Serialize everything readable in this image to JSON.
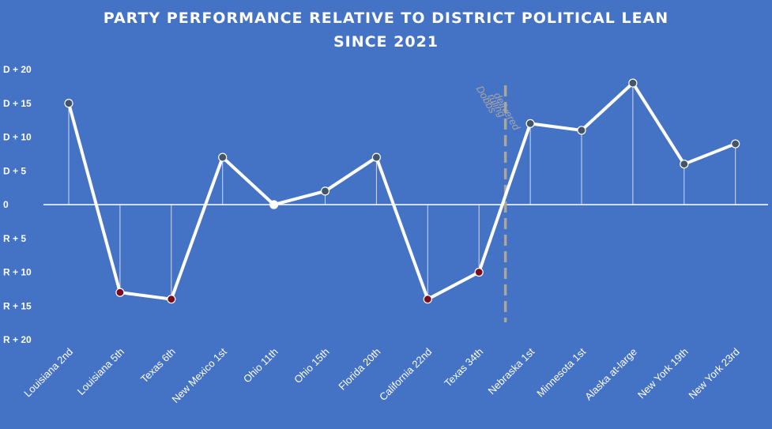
{
  "chart_data": {
    "type": "line",
    "title": "PARTY PERFORMANCE RELATIVE TO DISTRICT POLITICAL LEAN",
    "subtitle": "SINCE 2021",
    "xlabel": "",
    "ylabel": "",
    "categories": [
      "Louisiana 2nd",
      "Louisiana 5th",
      "Texas 6th",
      "New Mexico 1st",
      "Ohio 11th",
      "Ohio 15th",
      "Florida 20th",
      "California 22nd",
      "Texas 34th",
      "Nebraska 1st",
      "Minnesota 1st",
      "Alaska at-large",
      "New York 19th",
      "New York 23rd"
    ],
    "values": [
      15,
      -13,
      -14,
      7,
      0,
      2,
      7,
      -14,
      -10,
      12,
      11,
      18,
      6,
      9
    ],
    "ylim": [
      -20,
      20
    ],
    "yticks": [
      {
        "value": 20,
        "label": "D + 20"
      },
      {
        "value": 15,
        "label": "D + 15"
      },
      {
        "value": 10,
        "label": "D + 10"
      },
      {
        "value": 5,
        "label": "D +  5"
      },
      {
        "value": 0,
        "label": "0"
      },
      {
        "value": -5,
        "label": "R +  5"
      },
      {
        "value": -10,
        "label": "R + 10"
      },
      {
        "value": -15,
        "label": "R + 15"
      },
      {
        "value": -20,
        "label": "R + 20"
      }
    ],
    "annotation": {
      "lines": [
        "Dobbs",
        "ruling",
        "delivered"
      ],
      "after_category": "Texas 34th"
    },
    "grid": false,
    "legend": "none",
    "colors": {
      "background": "#4472C4",
      "line": "#FFFFFF",
      "positive_marker": "#44546A",
      "negative_marker": "#7B0C1E",
      "zero_marker": "#FFFFFF",
      "divider": "#A6A6A6"
    }
  }
}
